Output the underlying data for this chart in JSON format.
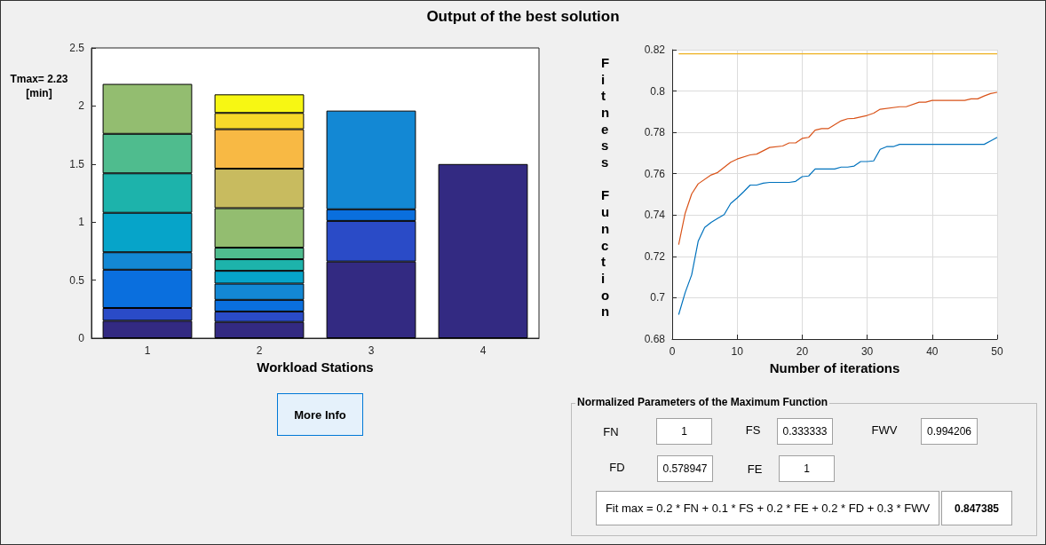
{
  "chart_data": [
    {
      "type": "bar",
      "title": "Output of the best solution",
      "xlabel": "Workload Stations",
      "stacked": true,
      "grid": false,
      "categories": [
        "1",
        "2",
        "3",
        "4"
      ],
      "ylim": [
        0,
        2.5
      ],
      "yticks": [
        0,
        0.5,
        1,
        1.5,
        2,
        2.5
      ],
      "annotations": [
        "Tmax= 2.23 [min]",
        "More Info"
      ],
      "series": [
        {
          "color": "#332a82",
          "values": [
            0.15,
            0.14,
            0.66,
            1.5
          ]
        },
        {
          "color": "#2a4bc7",
          "values": [
            0.11,
            0.09,
            0.35,
            null
          ]
        },
        {
          "color": "#0a6fde",
          "values": [
            0.33,
            0.1,
            0.1,
            null
          ]
        },
        {
          "color": "#1388d4",
          "values": [
            0.15,
            0.14,
            0.85,
            null
          ]
        },
        {
          "color": "#06a4c9",
          "values": [
            0.34,
            0.11,
            null,
            null
          ]
        },
        {
          "color": "#1db3ab",
          "values": [
            0.34,
            0.1,
            null,
            null
          ]
        },
        {
          "color": "#4fbc8e",
          "values": [
            0.34,
            0.1,
            null,
            null
          ]
        },
        {
          "color": "#93bd70",
          "values": [
            0.43,
            0.34,
            null,
            null
          ]
        },
        {
          "color": "#c8bb5f",
          "values": [
            null,
            0.34,
            null,
            null
          ]
        },
        {
          "color": "#f8b944",
          "values": [
            null,
            0.34,
            null,
            null
          ]
        },
        {
          "color": "#f7d92a",
          "values": [
            null,
            0.14,
            null,
            null
          ]
        },
        {
          "color": "#f7f713",
          "values": [
            null,
            0.16,
            null,
            null
          ]
        }
      ]
    },
    {
      "type": "line",
      "xlabel": "Number of iterations",
      "ylabel": "Fitness Function",
      "grid": true,
      "xlim": [
        0,
        50
      ],
      "xticks": [
        0,
        10,
        20,
        30,
        40,
        50
      ],
      "ylim": [
        0.68,
        0.82
      ],
      "yticks": [
        0.68,
        0.7,
        0.72,
        0.74,
        0.76,
        0.78,
        0.8,
        0.82
      ],
      "series": [
        {
          "color": "#edb120",
          "x": [
            1,
            50
          ],
          "values": [
            0.818,
            0.818
          ]
        },
        {
          "color": "#d95319",
          "x": [
            1,
            2,
            3,
            4,
            6,
            7,
            9,
            10,
            12,
            13,
            15,
            17,
            18,
            19,
            20,
            21,
            22,
            23,
            24,
            26,
            27,
            28,
            30,
            31,
            32,
            35,
            36,
            38,
            39,
            40,
            45,
            46,
            47,
            48,
            49,
            50
          ],
          "values": [
            0.7257,
            0.7409,
            0.7502,
            0.7551,
            0.7594,
            0.7606,
            0.7656,
            0.7671,
            0.7691,
            0.7695,
            0.7727,
            0.7734,
            0.7749,
            0.7749,
            0.7771,
            0.7776,
            0.7811,
            0.7818,
            0.7818,
            0.7856,
            0.7866,
            0.7868,
            0.7882,
            0.7893,
            0.7912,
            0.7924,
            0.7924,
            0.7946,
            0.7946,
            0.7955,
            0.7955,
            0.7962,
            0.7962,
            0.7976,
            0.7988,
            0.7994
          ]
        },
        {
          "color": "#0072bd",
          "x": [
            1,
            2,
            3,
            4,
            5,
            6,
            7,
            8,
            9,
            10,
            11,
            12,
            13,
            14,
            15,
            18,
            19,
            20,
            21,
            22,
            25,
            26,
            27,
            28,
            29,
            30,
            31,
            32,
            33,
            34,
            35,
            48,
            49,
            50
          ],
          "values": [
            0.6918,
            0.7025,
            0.7111,
            0.7273,
            0.734,
            0.7365,
            0.7384,
            0.7402,
            0.7456,
            0.7483,
            0.7513,
            0.7545,
            0.7545,
            0.7554,
            0.7558,
            0.7558,
            0.7563,
            0.7586,
            0.7589,
            0.7623,
            0.7623,
            0.7632,
            0.7632,
            0.7637,
            0.7659,
            0.7659,
            0.7662,
            0.7718,
            0.7731,
            0.7731,
            0.7742,
            0.7742,
            0.7759,
            0.7776
          ]
        }
      ]
    },
    {
      "type": "other",
      "title": "Normalized Parameters of the Maximum Function",
      "annotations": [
        "FN",
        "1",
        "FS",
        "0.333333",
        "FWV",
        "0.994206",
        "FD",
        "0.578947",
        "FE",
        "1",
        "Fit max = 0.2 * FN + 0.1 * FS + 0.2 * FE + 0.2 * FD + 0.3 * FWV",
        "0.847385"
      ]
    }
  ]
}
